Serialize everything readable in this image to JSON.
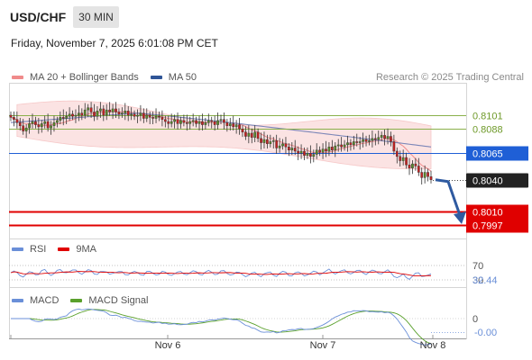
{
  "header": {
    "symbol": "USD/CHF",
    "timeframe": "30 MIN",
    "datetime": "Friday, November 7, 2025 6:01:08 PM CET"
  },
  "legend_main": {
    "ma20_label": "MA 20 + Bollinger Bands",
    "ma20_color": "#f08b8b",
    "ma50_label": "MA 50",
    "ma50_color": "#2f5597"
  },
  "copyright": "Research © 2025 Trading Central",
  "legend_rsi": {
    "rsi_label": "RSI",
    "rsi_color": "#6a8fd8",
    "ma_label": "9MA",
    "ma_color": "#e00000"
  },
  "legend_macd": {
    "macd_label": "MACD",
    "macd_color": "#6a8fd8",
    "signal_label": "MACD Signal",
    "signal_color": "#5aa02c"
  },
  "chart_data": [
    {
      "type": "candlestick",
      "x_labels": [
        "Nov 6",
        "Nov 7",
        "Nov 8"
      ],
      "price_levels": [
        {
          "value": 0.8101,
          "label": "0.8101",
          "kind": "resistance",
          "color": "#8ab04a"
        },
        {
          "value": 0.8088,
          "label": "0.8088",
          "kind": "resistance",
          "color": "#8ab04a"
        },
        {
          "value": 0.8065,
          "label": "0.8065",
          "kind": "pivot",
          "color": "#1f5fd6"
        },
        {
          "value": 0.804,
          "label": "0.8040",
          "kind": "last_price",
          "color": "#222222"
        },
        {
          "value": 0.801,
          "label": "0.8010",
          "kind": "target",
          "color": "#e00000"
        },
        {
          "value": 0.7997,
          "label": "0.7997",
          "kind": "target",
          "color": "#e00000"
        }
      ],
      "close": [
        0.8099,
        0.8097,
        0.8094,
        0.8091,
        0.8086,
        0.8089,
        0.8093,
        0.8095,
        0.8092,
        0.809,
        0.8093,
        0.8095,
        0.8089,
        0.8091,
        0.8094,
        0.8096,
        0.8099,
        0.8098,
        0.81,
        0.8102,
        0.81,
        0.8101,
        0.8103,
        0.8101,
        0.8106,
        0.8108,
        0.8104,
        0.81,
        0.8105,
        0.8107,
        0.8101,
        0.8106,
        0.8104,
        0.8107,
        0.8104,
        0.8102,
        0.8103,
        0.8105,
        0.8101,
        0.8102,
        0.81,
        0.8101,
        0.8103,
        0.8098,
        0.8101,
        0.8099,
        0.8098,
        0.81,
        0.8099,
        0.8097,
        0.8095,
        0.8093,
        0.8095,
        0.8097,
        0.8093,
        0.8096,
        0.8094,
        0.8093,
        0.8095,
        0.8096,
        0.8093,
        0.8095,
        0.8092,
        0.8094,
        0.8096,
        0.8095,
        0.8092,
        0.8096,
        0.8097,
        0.8094,
        0.8091,
        0.8093,
        0.809,
        0.8092,
        0.8088,
        0.8085,
        0.8081,
        0.8084,
        0.808,
        0.8085,
        0.8079,
        0.8075,
        0.8078,
        0.8074,
        0.8076,
        0.8077,
        0.807,
        0.8072,
        0.8074,
        0.8071,
        0.8068,
        0.807,
        0.8067,
        0.8065,
        0.8067,
        0.8063,
        0.8065,
        0.8062,
        0.8064,
        0.8068,
        0.8066,
        0.8069,
        0.8067,
        0.8071,
        0.8068,
        0.8072,
        0.8073,
        0.8071,
        0.8073,
        0.8075,
        0.8073,
        0.8076,
        0.8075,
        0.8076,
        0.8078,
        0.8076,
        0.8077,
        0.8079,
        0.8078,
        0.808,
        0.8082,
        0.8079,
        0.8081,
        0.8076,
        0.8067,
        0.8062,
        0.8058,
        0.8061,
        0.8054,
        0.8051,
        0.8055,
        0.8053,
        0.8047,
        0.8042,
        0.8047,
        0.8043,
        0.804
      ],
      "ma20_band": {
        "upper_start": 0.8111,
        "upper_end": 0.8088,
        "lower_start": 0.8081,
        "lower_end": 0.8052
      },
      "ma50": {
        "start": 0.8094,
        "peak": 0.8103,
        "end": 0.8071
      },
      "forecast_arrow": {
        "from": 0.804,
        "to": 0.801
      }
    },
    {
      "type": "line",
      "name": "RSI",
      "levels": [
        {
          "value": 70,
          "label": "70"
        },
        {
          "value": 30,
          "label": "30"
        }
      ],
      "last_value_label": "32.44",
      "ylim": [
        0,
        100
      ]
    },
    {
      "type": "line",
      "name": "MACD",
      "zero_label": "0",
      "last_value_label": "-0.00"
    }
  ]
}
